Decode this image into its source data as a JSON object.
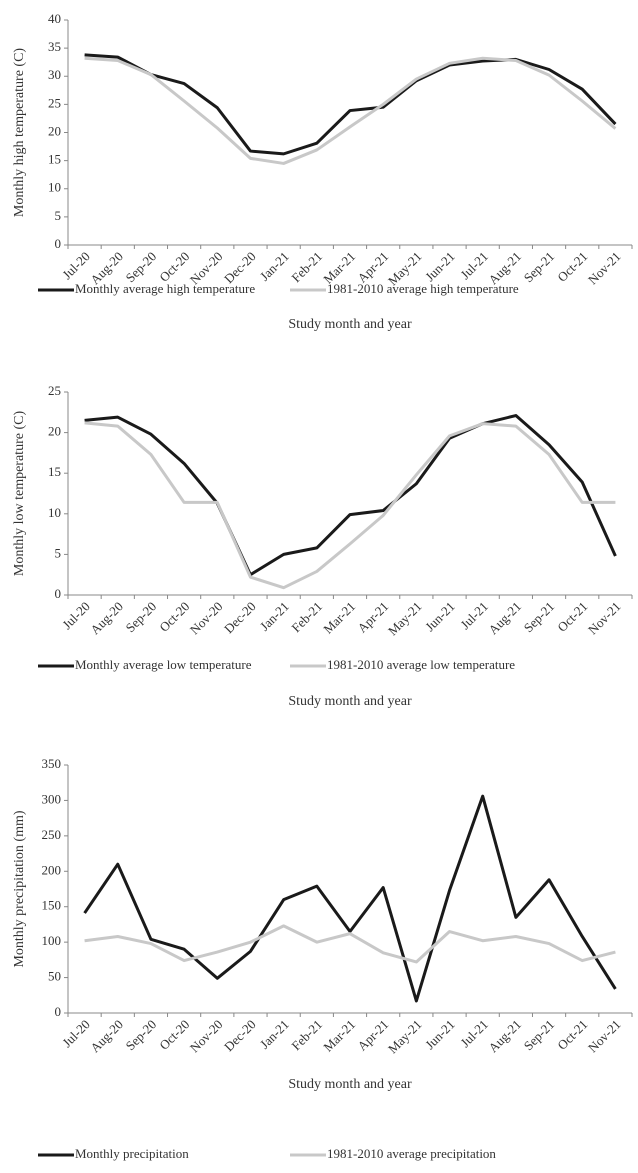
{
  "chart_data": [
    {
      "type": "line",
      "y_label": "Monthly high temperature (C)",
      "x_label": "Study month and year",
      "categories": [
        "Jul-20",
        "Aug-20",
        "Sep-20",
        "Oct-20",
        "Nov-20",
        "Dec-20",
        "Jan-21",
        "Feb-21",
        "Mar-21",
        "Apr-21",
        "May-21",
        "Jun-21",
        "Jul-21",
        "Aug-21",
        "Sep-21",
        "Oct-21",
        "Nov-21"
      ],
      "series": [
        {
          "name": "Monthly average high temperature",
          "color": "#1a1a1a",
          "values": [
            33.8,
            33.4,
            30.3,
            28.7,
            24.4,
            16.7,
            16.2,
            18.1,
            23.9,
            24.5,
            29.2,
            32.0,
            32.7,
            33.0,
            31.2,
            27.7,
            21.5
          ]
        },
        {
          "name": "1981-2010 average high temperature",
          "color": "#c8c8c8",
          "values": [
            33.2,
            32.8,
            30.3,
            25.6,
            20.8,
            15.4,
            14.5,
            16.9,
            21.0,
            25.0,
            29.5,
            32.3,
            33.2,
            32.8,
            30.2,
            25.6,
            20.7
          ]
        }
      ],
      "ylim": [
        0,
        40
      ],
      "yticks": [
        0,
        5,
        10,
        15,
        20,
        25,
        30,
        35,
        40
      ]
    },
    {
      "type": "line",
      "y_label": "Monthly low temperature (C)",
      "x_label": "Study month and year",
      "categories": [
        "Jul-20",
        "Aug-20",
        "Sep-20",
        "Oct-20",
        "Nov-20",
        "Dec-20",
        "Jan-21",
        "Feb-21",
        "Mar-21",
        "Apr-21",
        "May-21",
        "Jun-21",
        "Jul-21",
        "Aug-21",
        "Sep-21",
        "Oct-21",
        "Nov-21"
      ],
      "series": [
        {
          "name": "Monthly average low temperature",
          "color": "#1a1a1a",
          "values": [
            21.5,
            21.9,
            19.8,
            16.2,
            11.3,
            2.5,
            5.0,
            5.8,
            9.9,
            10.4,
            13.7,
            19.3,
            21.1,
            22.1,
            18.5,
            13.9,
            4.8
          ]
        },
        {
          "name": "1981-2010 average low temperature",
          "color": "#c8c8c8",
          "values": [
            21.2,
            20.8,
            17.3,
            11.4,
            11.4,
            2.2,
            0.9,
            2.9,
            6.3,
            9.8,
            14.8,
            19.6,
            21.1,
            20.8,
            17.3,
            11.4,
            11.4
          ]
        }
      ],
      "ylim": [
        0,
        25
      ],
      "yticks": [
        0,
        5,
        10,
        15,
        20,
        25
      ]
    },
    {
      "type": "line",
      "y_label": "Monthly precipitation (mm)",
      "x_label": "Study month and year",
      "categories": [
        "Jul-20",
        "Aug-20",
        "Sep-20",
        "Oct-20",
        "Nov-20",
        "Dec-20",
        "Jan-21",
        "Feb-21",
        "Mar-21",
        "Apr-21",
        "May-21",
        "Jun-21",
        "Jul-21",
        "Aug-21",
        "Sep-21",
        "Oct-21",
        "Nov-21"
      ],
      "series": [
        {
          "name": "Monthly precipitation",
          "color": "#1a1a1a",
          "values": [
            141,
            210,
            104,
            90,
            49,
            87,
            160,
            179,
            115,
            177,
            17,
            173,
            306,
            135,
            188,
            108,
            34
          ]
        },
        {
          "name": "1981-2010 average precipitation",
          "color": "#c8c8c8",
          "values": [
            102,
            108,
            98,
            74,
            86,
            100,
            123,
            100,
            112,
            85,
            72,
            115,
            102,
            108,
            98,
            74,
            86
          ]
        }
      ],
      "ylim": [
        0,
        350
      ],
      "yticks": [
        0,
        50,
        100,
        150,
        200,
        250,
        300,
        350
      ]
    }
  ]
}
